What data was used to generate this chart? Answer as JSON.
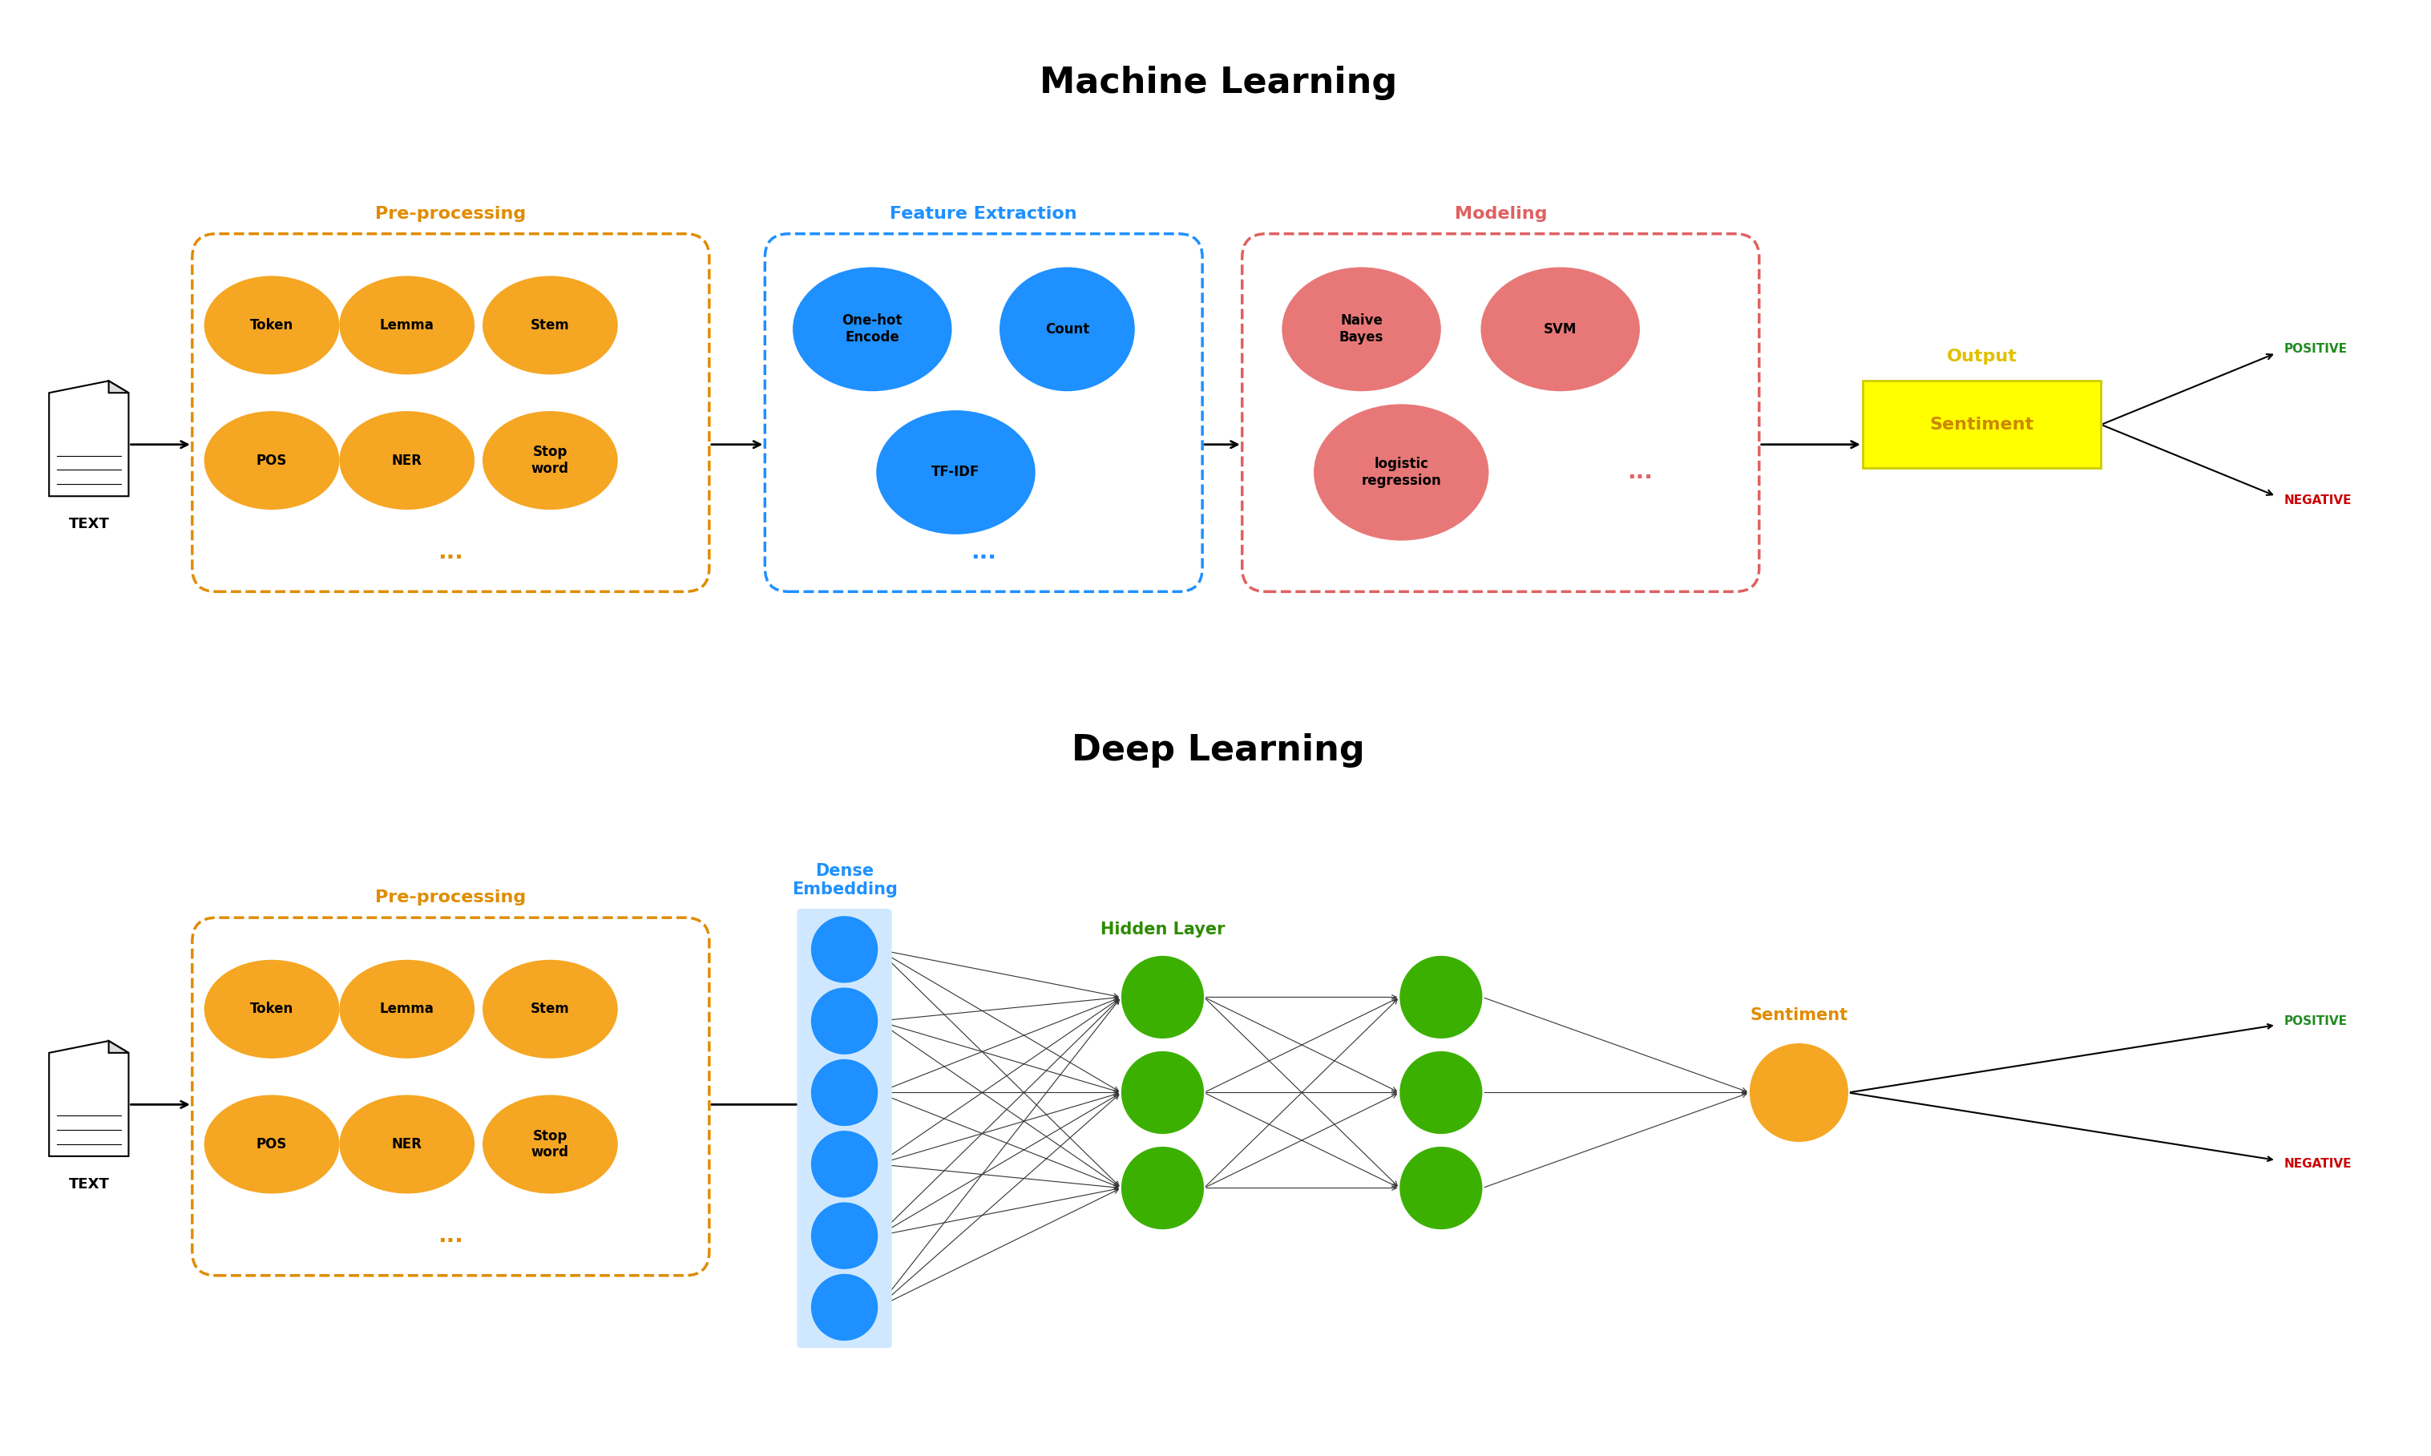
{
  "title_ml": "Machine Learning",
  "title_dl": "Deep Learning",
  "bg_color": "#ffffff",
  "orange": "#F5A623",
  "orange_dark": "#E08C00",
  "blue": "#1E90FF",
  "pink": "#E87878",
  "green": "#2E8B00",
  "green_circle": "#3CB000",
  "yellow": "#FFFF00",
  "black": "#000000",
  "positive_color": "#228B22",
  "negative_color": "#CC0000",
  "ml_preproc_label": "Pre-processing",
  "ml_feature_label": "Feature Extraction",
  "ml_model_label": "Modeling",
  "ml_output_label": "Output",
  "ml_sentiment_label": "Sentiment",
  "dl_preproc_label": "Pre-processing",
  "dl_embed_label": "Dense\nEmbedding",
  "dl_hidden_label": "Hidden Layer",
  "dl_sentiment_label": "Sentiment",
  "positive_label": "POSITIVE",
  "negative_label": "NEGATIVE",
  "text_label": "TEXT"
}
